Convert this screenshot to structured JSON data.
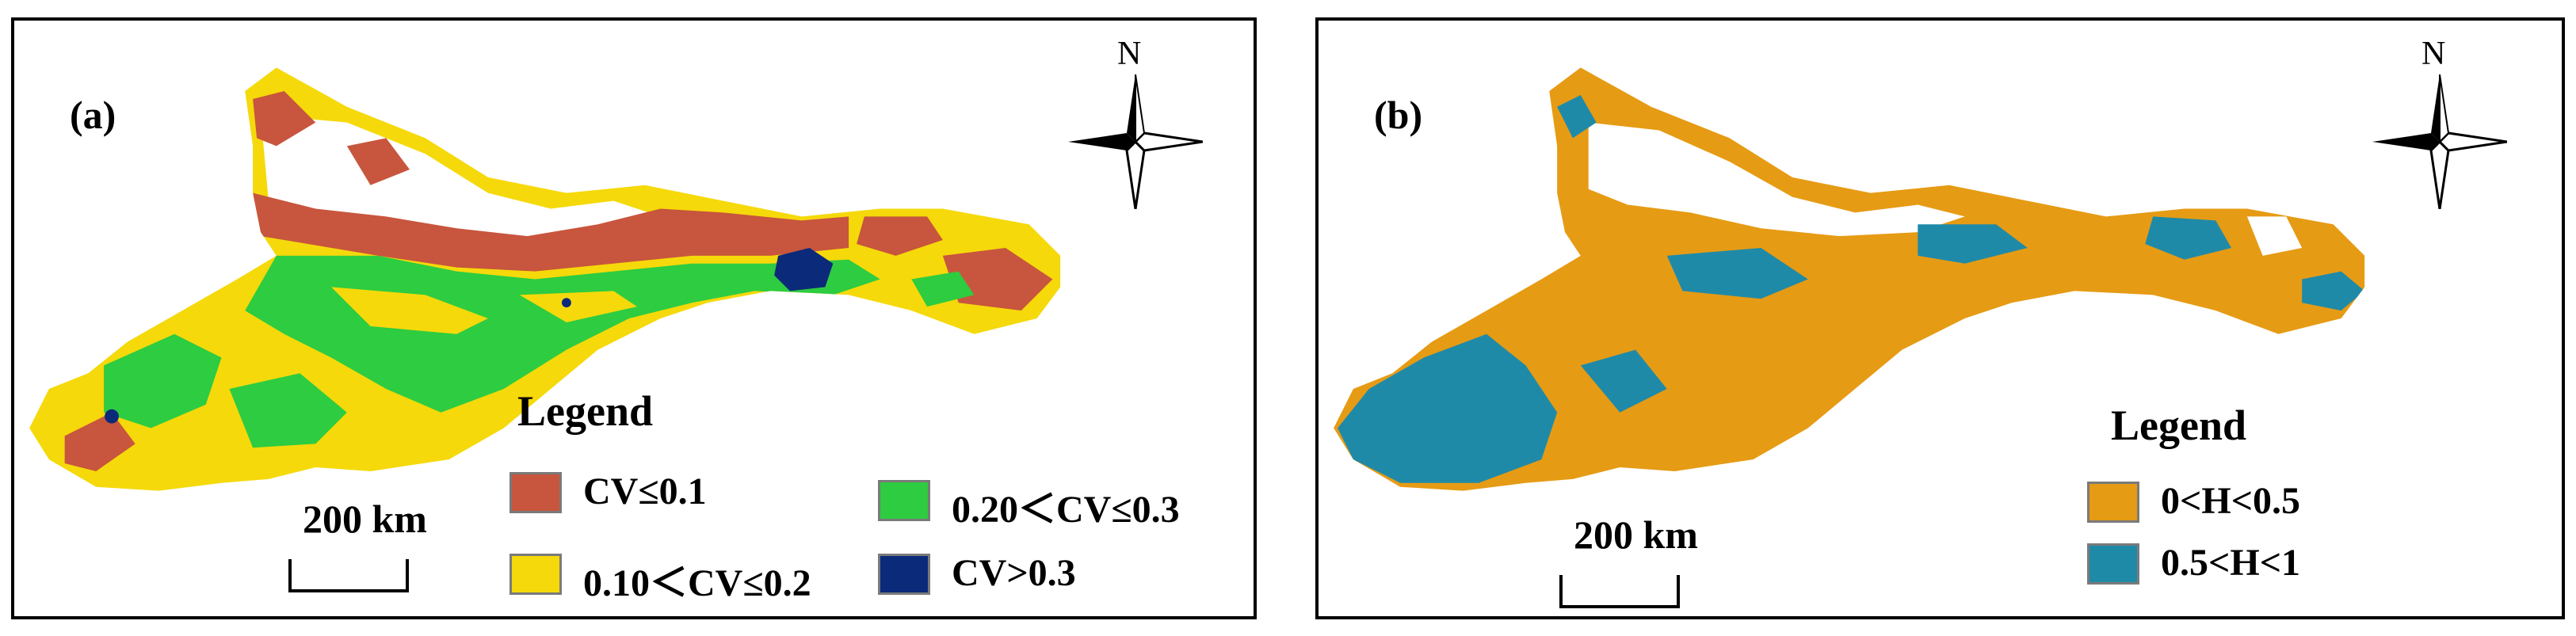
{
  "panels": [
    {
      "label": "(a)",
      "north": "N",
      "legend_title": "Legend",
      "legend": [
        {
          "label": "CV≤0.1",
          "color": "#c8553d"
        },
        {
          "label": "0.10＜CV≤0.2",
          "color": "#f5d90a"
        },
        {
          "label": "0.20＜CV≤0.3",
          "color": "#2ecc40"
        },
        {
          "label": "CV>0.3",
          "color": "#0b2a7a"
        }
      ],
      "scale": "200  km"
    },
    {
      "label": "(b)",
      "north": "N",
      "legend_title": "Legend",
      "legend": [
        {
          "label": "0<H<0.5",
          "color": "#e69b14"
        },
        {
          "label": "0.5<H<1",
          "color": "#1f8aa8"
        }
      ],
      "scale": "200  km"
    }
  ]
}
